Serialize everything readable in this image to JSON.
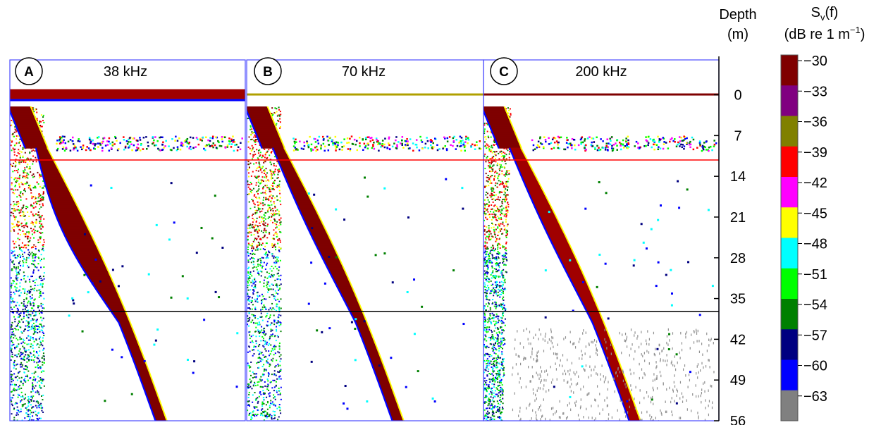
{
  "chart_data": {
    "type": "heatmap",
    "panels": [
      {
        "letter": "A",
        "frequency": "38 kHz"
      },
      {
        "letter": "B",
        "frequency": "70 kHz"
      },
      {
        "letter": "C",
        "frequency": "200 kHz"
      }
    ],
    "depth_axis": {
      "label_line1": "Depth",
      "label_line2": "(m)",
      "ticks": [
        0,
        7,
        14,
        21,
        28,
        35,
        42,
        49,
        56
      ],
      "ylim": [
        -6,
        56
      ]
    },
    "colorbar": {
      "label_main": "S",
      "label_sub": "v",
      "label_arg": "(f)",
      "units": "(dB re  1 m",
      "units_exp": "−1",
      "units_close": ")",
      "ticks": [
        "−30",
        "−33",
        "−36",
        "−39",
        "−42",
        "−45",
        "−48",
        "−51",
        "−54",
        "−57",
        "−60",
        "−63"
      ],
      "values": [
        -30,
        -33,
        -36,
        -39,
        -42,
        -45,
        -48,
        -51,
        -54,
        -57,
        -60,
        -63,
        -66
      ],
      "colors": [
        "#7f0000",
        "#800080",
        "#808000",
        "#ff0000",
        "#ff00ff",
        "#ffff00",
        "#00ffff",
        "#00ff00",
        "#008000",
        "#000080",
        "#0000ff",
        "#808080"
      ]
    },
    "reference_lines": [
      {
        "depth": 11.2,
        "color": "#ff0000"
      },
      {
        "depth": 37.2,
        "color": "#000000"
      }
    ],
    "colors": {
      "background": "#ffffff",
      "panel_border": "#4a4aff"
    }
  }
}
